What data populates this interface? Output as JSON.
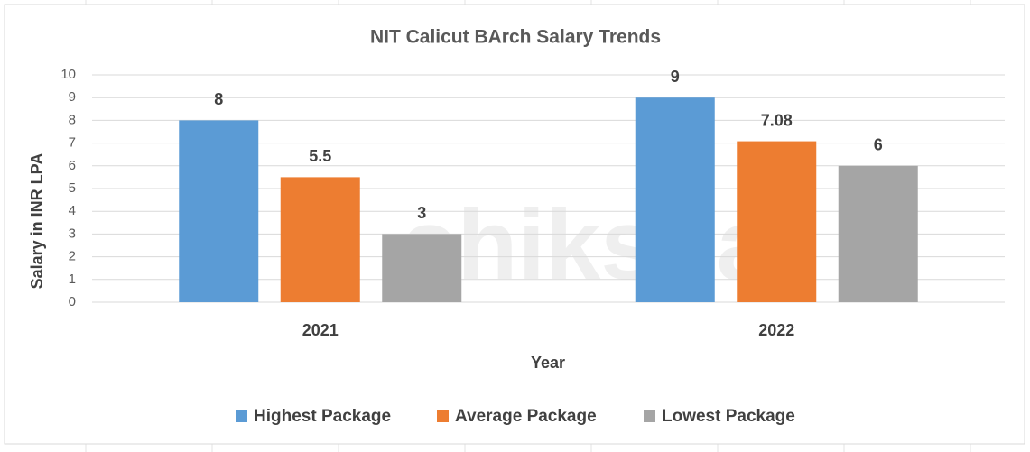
{
  "chart_data": {
    "type": "bar",
    "title": "NIT Calicut BArch Salary Trends",
    "watermark": "shiksha",
    "x_label": "Year",
    "y_label": "Salary in INR LPA",
    "categories": [
      "2021",
      "2022"
    ],
    "series": [
      {
        "name": "Highest Package",
        "color": "#5b9bd5",
        "values": [
          8,
          9
        ]
      },
      {
        "name": "Average Package",
        "color": "#ed7d31",
        "values": [
          5.5,
          7.08
        ]
      },
      {
        "name": "Lowest Package",
        "color": "#a5a5a5",
        "values": [
          3,
          6
        ]
      }
    ],
    "ylim": [
      0,
      10
    ],
    "yticks": [
      0,
      1,
      2,
      3,
      4,
      5,
      6,
      7,
      8,
      9,
      10
    ],
    "grid": true,
    "legend": "bottom"
  }
}
